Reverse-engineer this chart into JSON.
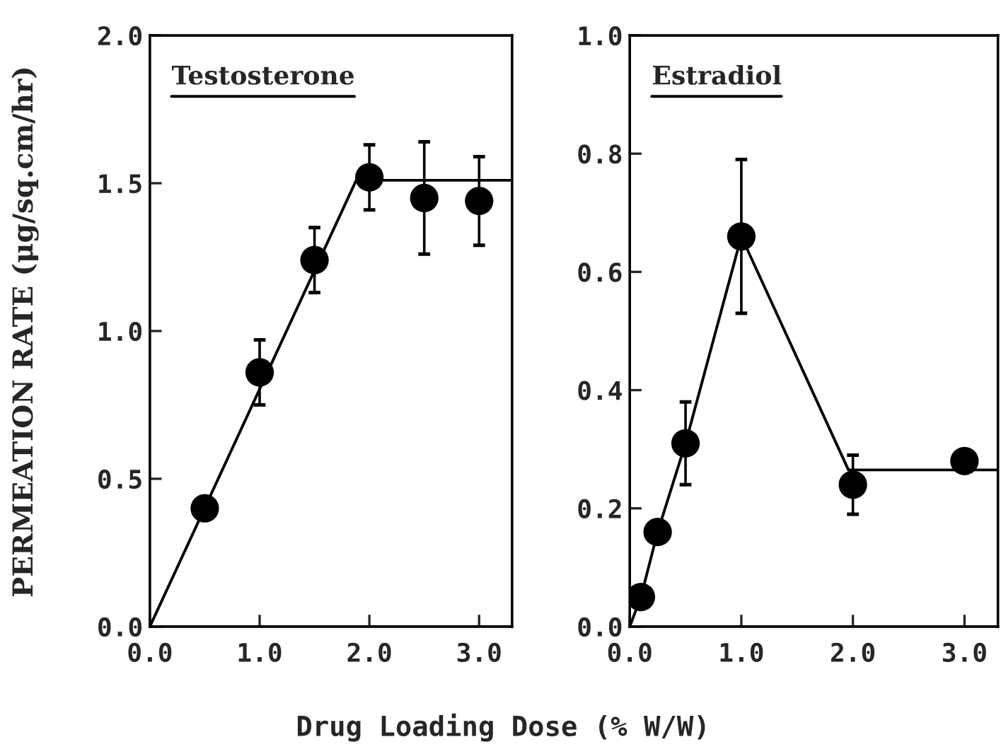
{
  "chart_data": [
    {
      "type": "scatter",
      "title": "Testosterone",
      "ylabel": "PERMEATION RATE (μg/sq.cm/hr)",
      "xlabel": "Drug Loading Dose (% W/W)",
      "xlim": [
        0,
        3.3
      ],
      "xticks": [
        {
          "value": 0,
          "label": "0.0"
        },
        {
          "value": 1,
          "label": "1.0"
        },
        {
          "value": 2,
          "label": "2.0"
        },
        {
          "value": 3,
          "label": "3.0"
        }
      ],
      "ylim": [
        0,
        2.0
      ],
      "yticks": [
        {
          "value": 0,
          "label": "0.0"
        },
        {
          "value": 0.5,
          "label": "0.5"
        },
        {
          "value": 1.0,
          "label": "1.0"
        },
        {
          "value": 1.5,
          "label": "1.5"
        },
        {
          "value": 2.0,
          "label": "2.0"
        }
      ],
      "marker": "circle",
      "grid": false,
      "legend": false,
      "series": [
        {
          "color": "#000000",
          "x": [
            0.5,
            1.0,
            1.5,
            2.0,
            2.5,
            3.0
          ],
          "values": [
            0.4,
            0.86,
            1.24,
            1.52,
            1.45,
            1.44
          ],
          "errors": [
            null,
            [
              0.75,
              0.97
            ],
            [
              1.13,
              1.35
            ],
            [
              1.41,
              1.63
            ],
            [
              1.26,
              1.64
            ],
            [
              1.29,
              1.59
            ]
          ]
        },
        {
          "type": "line",
          "color": "#000000",
          "marker": "none",
          "x": [
            0,
            1.88,
            3.3
          ],
          "values": [
            0,
            1.51,
            1.51
          ]
        }
      ]
    },
    {
      "type": "scatter",
      "title": "Estradiol",
      "xlim": [
        0,
        3.3
      ],
      "xticks": [
        {
          "value": 0,
          "label": "0.0"
        },
        {
          "value": 1,
          "label": "1.0"
        },
        {
          "value": 2,
          "label": "2.0"
        },
        {
          "value": 3,
          "label": "3.0"
        }
      ],
      "ylim": [
        0,
        1.0
      ],
      "yticks": [
        {
          "value": 0,
          "label": "0.0"
        },
        {
          "value": 0.2,
          "label": "0.2"
        },
        {
          "value": 0.4,
          "label": "0.4"
        },
        {
          "value": 0.6,
          "label": "0.6"
        },
        {
          "value": 0.8,
          "label": "0.8"
        },
        {
          "value": 1.0,
          "label": "1.0"
        }
      ],
      "marker": "circle",
      "grid": false,
      "legend": false,
      "series": [
        {
          "color": "#000000",
          "x": [
            0.1,
            0.25,
            0.5,
            1.0,
            2.0,
            3.0
          ],
          "values": [
            0.05,
            0.16,
            0.31,
            0.66,
            0.24,
            0.28
          ],
          "errors": [
            null,
            null,
            [
              0.24,
              0.38
            ],
            [
              0.53,
              0.79
            ],
            [
              0.19,
              0.29
            ],
            null
          ]
        },
        {
          "type": "line",
          "color": "#000000",
          "marker": "none",
          "x": [
            0,
            0.1,
            0.25,
            0.5,
            1.0,
            1.96,
            3.3
          ],
          "values": [
            0,
            0.05,
            0.16,
            0.31,
            0.66,
            0.265,
            0.265
          ]
        }
      ]
    }
  ]
}
